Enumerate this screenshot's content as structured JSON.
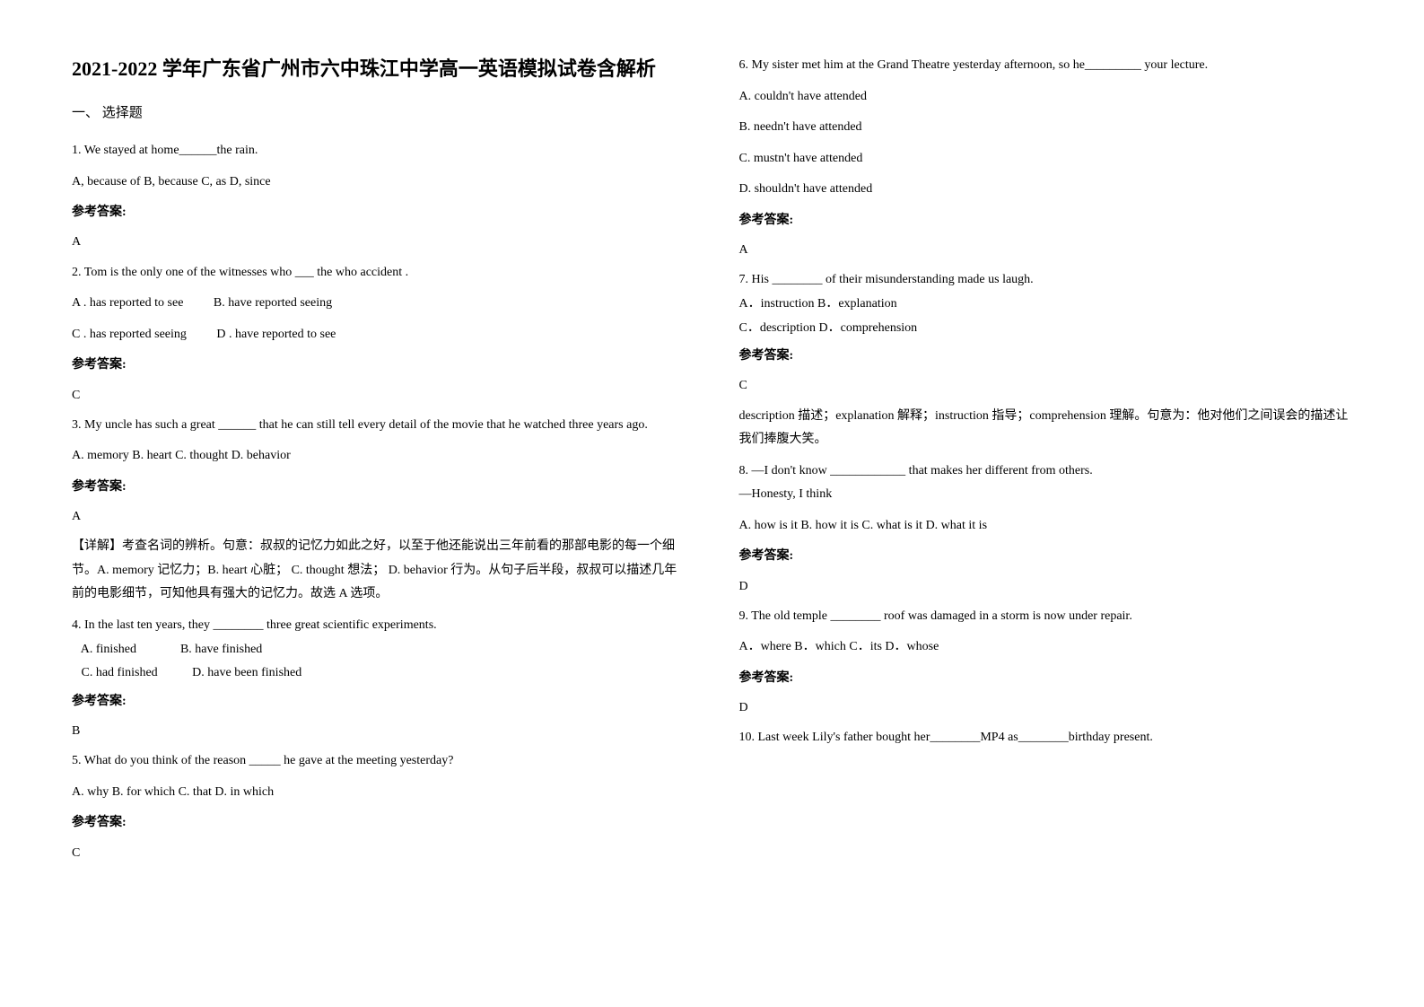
{
  "title": "2021-2022 学年广东省广州市六中珠江中学高一英语模拟试卷含解析",
  "section1_header": "一、 选择题",
  "left": {
    "q1": {
      "text": "1. We stayed at home______the rain.",
      "options": "A, because of    B, because    C, as         D, since",
      "answer_label": "参考答案:",
      "answer": "A"
    },
    "q2": {
      "text": "2. Tom is the only one of the witnesses who ___ the who accident .",
      "optA": "A . has reported to see",
      "optB": "B.   have reported seeing",
      "optC": "C . has reported seeing",
      "optD": "D .  have reported to see",
      "answer_label": "参考答案:",
      "answer": "C"
    },
    "q3": {
      "text": "3. My uncle has such a great ______ that he can still tell every detail of the movie that he watched three years ago.",
      "options": "A. memory      B. heart C. thought      D. behavior",
      "answer_label": "参考答案:",
      "answer": "A",
      "explanation": "【详解】考查名词的辨析。句意：叔叔的记忆力如此之好，以至于他还能说出三年前看的那部电影的每一个细节。A. memory 记忆力；B. heart 心脏； C. thought 想法； D. behavior 行为。从句子后半段，叔叔可以描述几年前的电影细节，可知他具有强大的记忆力。故选 A 选项。"
    },
    "q4": {
      "text": "4. In the last ten years, they ________ three great scientific experiments.",
      "line1": "   A. finished              B. have finished",
      "line2": "   C. had finished           D. have been finished",
      "answer_label": "参考答案:",
      "answer": "B"
    },
    "q5": {
      "text": "5. What do you think of the reason _____ he gave at the meeting yesterday?",
      "options": "A. why       B. for which    C. that    D. in which",
      "answer_label": "参考答案:",
      "answer": "C"
    }
  },
  "right": {
    "q6": {
      "text": "6. My sister met him at the Grand Theatre yesterday afternoon, so he_________ your lecture.",
      "optA": "A. couldn't have attended",
      "optB": "B. needn't have attended",
      "optC": "C. mustn't have attended",
      "optD": "D. shouldn't have attended",
      "answer_label": "参考答案:",
      "answer": "A"
    },
    "q7": {
      "text": "7. His ________ of their misunderstanding made us laugh.",
      "line1": "A．instruction   B．explanation",
      "line2": "C．description        D．comprehension",
      "answer_label": "参考答案:",
      "answer": "C",
      "explanation": "description 描述；explanation 解释；instruction 指导；comprehension 理解。句意为：他对他们之间误会的描述让我们捧腹大笑。"
    },
    "q8": {
      "text": "8. —I don't know ____________ that makes her different from others.",
      "line1": "—Honesty, I think",
      "options": "A. how is it   B. how it is    C. what is it   D. what it is",
      "answer_label": "参考答案:",
      "answer": "D"
    },
    "q9": {
      "text": "9. The old temple ________ roof was damaged in a storm is now under repair.",
      "options": "A．where  B．which  C．its  D．whose",
      "answer_label": "参考答案:",
      "answer": "D"
    },
    "q10": {
      "text": "10.  Last week Lily's father bought her________MP4 as________birthday present."
    }
  }
}
